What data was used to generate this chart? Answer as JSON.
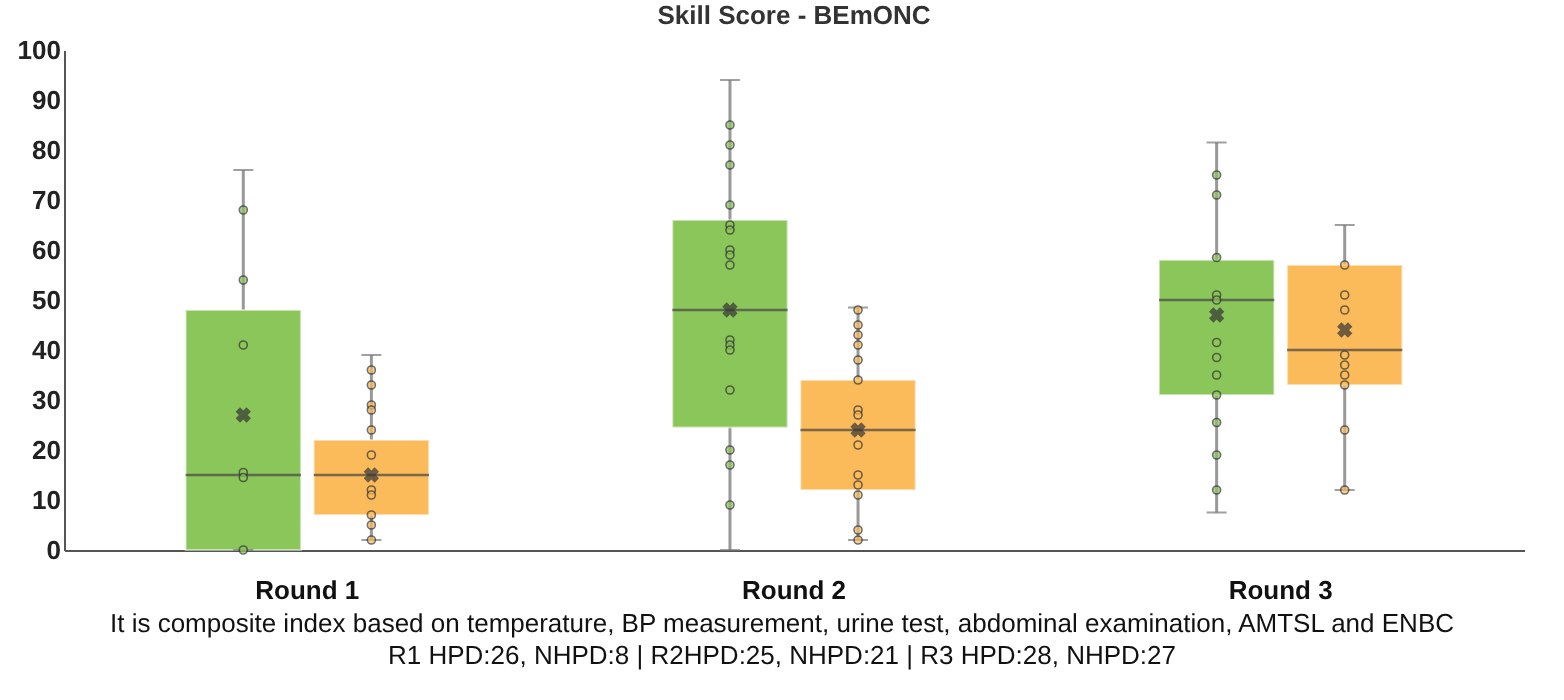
{
  "chart_data": {
    "type": "box",
    "title": "Skill Score - BEmONC",
    "categories": [
      "Round 1",
      "Round 2",
      "Round 3"
    ],
    "series": [
      {
        "color": "#8bc65a",
        "boxes": [
          {
            "low": 0,
            "q1": 0,
            "median": 15,
            "q3": 48,
            "high": 76,
            "mean": 27
          },
          {
            "low": 0,
            "q1": 24.5,
            "median": 48,
            "q3": 66,
            "high": 94,
            "mean": 48
          },
          {
            "low": 7.5,
            "q1": 31,
            "median": 50,
            "q3": 58,
            "high": 81.5,
            "mean": 47
          }
        ]
      },
      {
        "color": "#fbbb5a",
        "boxes": [
          {
            "low": 2,
            "q1": 7,
            "median": 15,
            "q3": 22,
            "high": 39,
            "mean": 15
          },
          {
            "low": 2,
            "q1": 12,
            "median": 24,
            "q3": 34,
            "high": 48.5,
            "mean": 24
          },
          {
            "low": 12,
            "q1": 33,
            "median": 40,
            "q3": 57,
            "high": 65,
            "mean": 44
          }
        ]
      },
      {
        "type": "scatter",
        "color": "#8bc65a",
        "x": [
          "Round 1",
          "Round 1",
          "Round 1",
          "Round 1",
          "Round 1",
          "Round 1",
          "Round 2",
          "Round 2",
          "Round 2",
          "Round 2",
          "Round 2",
          "Round 2",
          "Round 2",
          "Round 2",
          "Round 2",
          "Round 2",
          "Round 2",
          "Round 2",
          "Round 2",
          "Round 2",
          "Round 2",
          "Round 2",
          "Round 3",
          "Round 3",
          "Round 3",
          "Round 3",
          "Round 3",
          "Round 3",
          "Round 3",
          "Round 3",
          "Round 3",
          "Round 3",
          "Round 3",
          "Round 3"
        ],
        "values": [
          68,
          54,
          41,
          15.5,
          14.5,
          0,
          85,
          81,
          77,
          69,
          65,
          64,
          60,
          59,
          57,
          42,
          41,
          40,
          32,
          20,
          17,
          9,
          75,
          71,
          58.5,
          51,
          50,
          41.5,
          38.5,
          35,
          31,
          25.5,
          19,
          12
        ]
      },
      {
        "type": "scatter",
        "color": "#fbbb5a",
        "x": [
          "Round 1",
          "Round 1",
          "Round 1",
          "Round 1",
          "Round 1",
          "Round 1",
          "Round 1",
          "Round 1",
          "Round 1",
          "Round 1",
          "Round 1",
          "Round 2",
          "Round 2",
          "Round 2",
          "Round 2",
          "Round 2",
          "Round 2",
          "Round 2",
          "Round 2",
          "Round 2",
          "Round 2",
          "Round 2",
          "Round 2",
          "Round 2",
          "Round 2",
          "Round 3",
          "Round 3",
          "Round 3",
          "Round 3",
          "Round 3",
          "Round 3",
          "Round 3",
          "Round 3",
          "Round 3"
        ],
        "values": [
          36,
          33,
          29,
          28,
          24,
          19,
          12,
          11,
          7,
          5,
          2,
          48,
          45,
          43,
          41,
          38,
          34,
          28,
          27,
          21,
          15,
          13,
          11,
          4,
          2,
          57,
          51,
          48,
          39,
          37,
          35,
          33,
          24,
          12
        ]
      }
    ],
    "ylim": [
      0,
      100
    ],
    "yticks": [
      0,
      10,
      20,
      30,
      40,
      50,
      60,
      70,
      80,
      90,
      100
    ],
    "marker": "circle",
    "annotations": [
      "It is composite index based on temperature, BP measurement, urine test, abdominal examination, AMTSL and ENBC",
      "R1 HPD:26, NHPD:8 | R2HPD:25, NHPD:21 | R3 HPD:28, NHPD:27"
    ]
  }
}
